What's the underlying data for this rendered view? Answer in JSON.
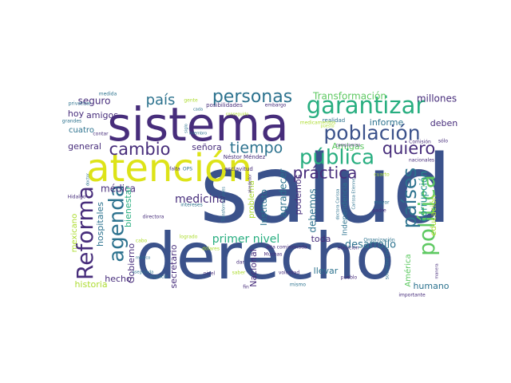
{
  "palette": {
    "dark_purple": "#472d7b",
    "indigo": "#3b528b",
    "blue": "#2c728e",
    "teal": "#21918c",
    "green_teal": "#28ae80",
    "green": "#5ec962",
    "lime": "#addc30",
    "yellow": "#dde318",
    "deep": "#440154"
  },
  "words": [
    {
      "text": "salud",
      "color": "#3b528b"
    },
    {
      "text": "derecho",
      "color": "#3b528b"
    },
    {
      "text": "sistema",
      "color": "#472d7b"
    },
    {
      "text": "atención",
      "color": "#dde318"
    },
    {
      "text": "garantizar",
      "color": "#28ae80"
    },
    {
      "text": "población",
      "color": "#3b528b"
    },
    {
      "text": "pública",
      "color": "#28ae80"
    },
    {
      "text": "personas",
      "color": "#2c728e"
    },
    {
      "text": "política",
      "color": "#5ec962"
    },
    {
      "text": "países",
      "color": "#2c728e"
    },
    {
      "text": "Reforma",
      "color": "#472d7b"
    },
    {
      "text": "agenda",
      "color": "#2c728e"
    },
    {
      "text": "cambio",
      "color": "#472d7b"
    },
    {
      "text": "quiero",
      "color": "#472d7b"
    },
    {
      "text": "tiempo",
      "color": "#2c728e"
    },
    {
      "text": "práctica",
      "color": "#472d7b"
    },
    {
      "text": "país",
      "color": "#2c728e"
    },
    {
      "text": "primer nivel",
      "color": "#28ae80"
    },
    {
      "text": "medicina",
      "color": "#472d7b"
    },
    {
      "text": "desarrollo",
      "color": "#2c728e"
    },
    {
      "text": "corrupción",
      "color": "#21918c"
    },
    {
      "text": "Transformación",
      "color": "#5ec962"
    },
    {
      "text": "millones",
      "color": "#472d7b"
    },
    {
      "text": "seguro",
      "color": "#472d7b"
    },
    {
      "text": "amigos",
      "color": "#472d7b"
    },
    {
      "text": "hoy",
      "color": "#472d7b"
    },
    {
      "text": "cuatro",
      "color": "#2c728e"
    },
    {
      "text": "general",
      "color": "#472d7b"
    },
    {
      "text": "señora",
      "color": "#472d7b"
    },
    {
      "text": "médica",
      "color": "#472d7b"
    },
    {
      "text": "mexicano",
      "color": "#addc30"
    },
    {
      "text": "hospitales",
      "color": "#2c728e"
    },
    {
      "text": "bienestar",
      "color": "#28ae80"
    },
    {
      "text": "Gobierno",
      "color": "#472d7b"
    },
    {
      "text": "hecho",
      "color": "#472d7b"
    },
    {
      "text": "historia",
      "color": "#addc30"
    },
    {
      "text": "secretario",
      "color": "#472d7b"
    },
    {
      "text": "Nacional",
      "color": "#472d7b"
    },
    {
      "text": "Instituto",
      "color": "#2c728e"
    },
    {
      "text": "problema",
      "color": "#addc30"
    },
    {
      "text": "agradecer",
      "color": "#2c728e"
    },
    {
      "text": "podemos",
      "color": "#472d7b"
    },
    {
      "text": "debemos",
      "color": "#2c728e"
    },
    {
      "text": "Amigas",
      "color": "#5ec962"
    },
    {
      "text": "informe",
      "color": "#2c728e"
    },
    {
      "text": "deben",
      "color": "#472d7b"
    },
    {
      "text": "educación",
      "color": "#addc30"
    },
    {
      "text": "toda",
      "color": "#472d7b"
    },
    {
      "text": "llevar",
      "color": "#2c728e"
    },
    {
      "text": "humano",
      "color": "#2c728e"
    },
    {
      "text": "América",
      "color": "#5ec962"
    },
    {
      "text": "Independencia",
      "color": "#2c728e"
    },
    {
      "text": "realidad",
      "color": "#2c728e"
    },
    {
      "text": "Organización",
      "color": "#2c728e"
    },
    {
      "text": "nacionales",
      "color": "#472d7b"
    },
    {
      "text": "Comisión",
      "color": "#472d7b"
    },
    {
      "text": "medida",
      "color": "#2c728e"
    },
    {
      "text": "privatizar",
      "color": "#2c728e"
    },
    {
      "text": "posibilidades",
      "color": "#472d7b"
    },
    {
      "text": "embargo",
      "color": "#472d7b"
    },
    {
      "text": "miembro",
      "color": "#2c728e"
    },
    {
      "text": "medicamentos",
      "color": "#addc30"
    },
    {
      "text": "compromiso",
      "color": "#472d7b"
    },
    {
      "text": "Néstor Méndez",
      "color": "#472d7b"
    },
    {
      "text": "esclavitud",
      "color": "#472d7b"
    },
    {
      "text": "grandes",
      "color": "#2c728e"
    },
    {
      "text": "contar",
      "color": "#472d7b"
    },
    {
      "text": "Hidalgo",
      "color": "#472d7b"
    },
    {
      "text": "mayor",
      "color": "#2c728e"
    },
    {
      "text": "padre",
      "color": "#472d7b"
    },
    {
      "text": "intereses",
      "color": "#2c728e"
    },
    {
      "text": "directora",
      "color": "#472d7b"
    },
    {
      "text": "Transformaciones",
      "color": "#2c728e"
    },
    {
      "text": "Carissa Etienne",
      "color": "#2c728e"
    },
    {
      "text": "doctora Carissa",
      "color": "#2c728e"
    },
    {
      "text": "logrado",
      "color": "#addc30"
    },
    {
      "text": "cabo",
      "color": "#addc30"
    },
    {
      "text": "asegurada",
      "color": "#2c728e"
    },
    {
      "text": "espacio",
      "color": "#2c728e"
    },
    {
      "text": "falta",
      "color": "#472d7b"
    },
    {
      "text": "OPS",
      "color": "#2c728e"
    },
    {
      "text": "dólares",
      "color": "#addc30"
    },
    {
      "text": "dar",
      "color": "#472d7b"
    },
    {
      "text": "nivel",
      "color": "#472d7b"
    },
    {
      "text": "saber",
      "color": "#addc30"
    },
    {
      "text": "voluntad",
      "color": "#472d7b"
    },
    {
      "text": "fin",
      "color": "#472d7b"
    },
    {
      "text": "mismo",
      "color": "#2c728e"
    },
    {
      "text": "alta comisionada",
      "color": "#472d7b"
    },
    {
      "text": "Muchas",
      "color": "#472d7b"
    },
    {
      "text": "abolición",
      "color": "#472d7b"
    },
    {
      "text": "pueblo",
      "color": "#472d7b"
    },
    {
      "text": "sociedad civil",
      "color": "#2c728e"
    },
    {
      "text": "importante",
      "color": "#472d7b"
    },
    {
      "text": "manera",
      "color": "#472d7b"
    },
    {
      "text": "sólo",
      "color": "#472d7b"
    },
    {
      "text": "siglo",
      "color": "#2c728e"
    },
    {
      "text": "gente",
      "color": "#addc30"
    },
    {
      "text": "cada",
      "color": "#2c728e"
    },
    {
      "text": "puesto",
      "color": "#addc30"
    },
    {
      "text": "conseguido",
      "color": "#addc30"
    },
    {
      "text": "doctor",
      "color": "#2c728e"
    },
    {
      "text": "médico",
      "color": "#2c728e"
    },
    {
      "text": "alrededor",
      "color": "#472d7b"
    },
    {
      "text": "cuarto",
      "color": "#addc30"
    }
  ]
}
